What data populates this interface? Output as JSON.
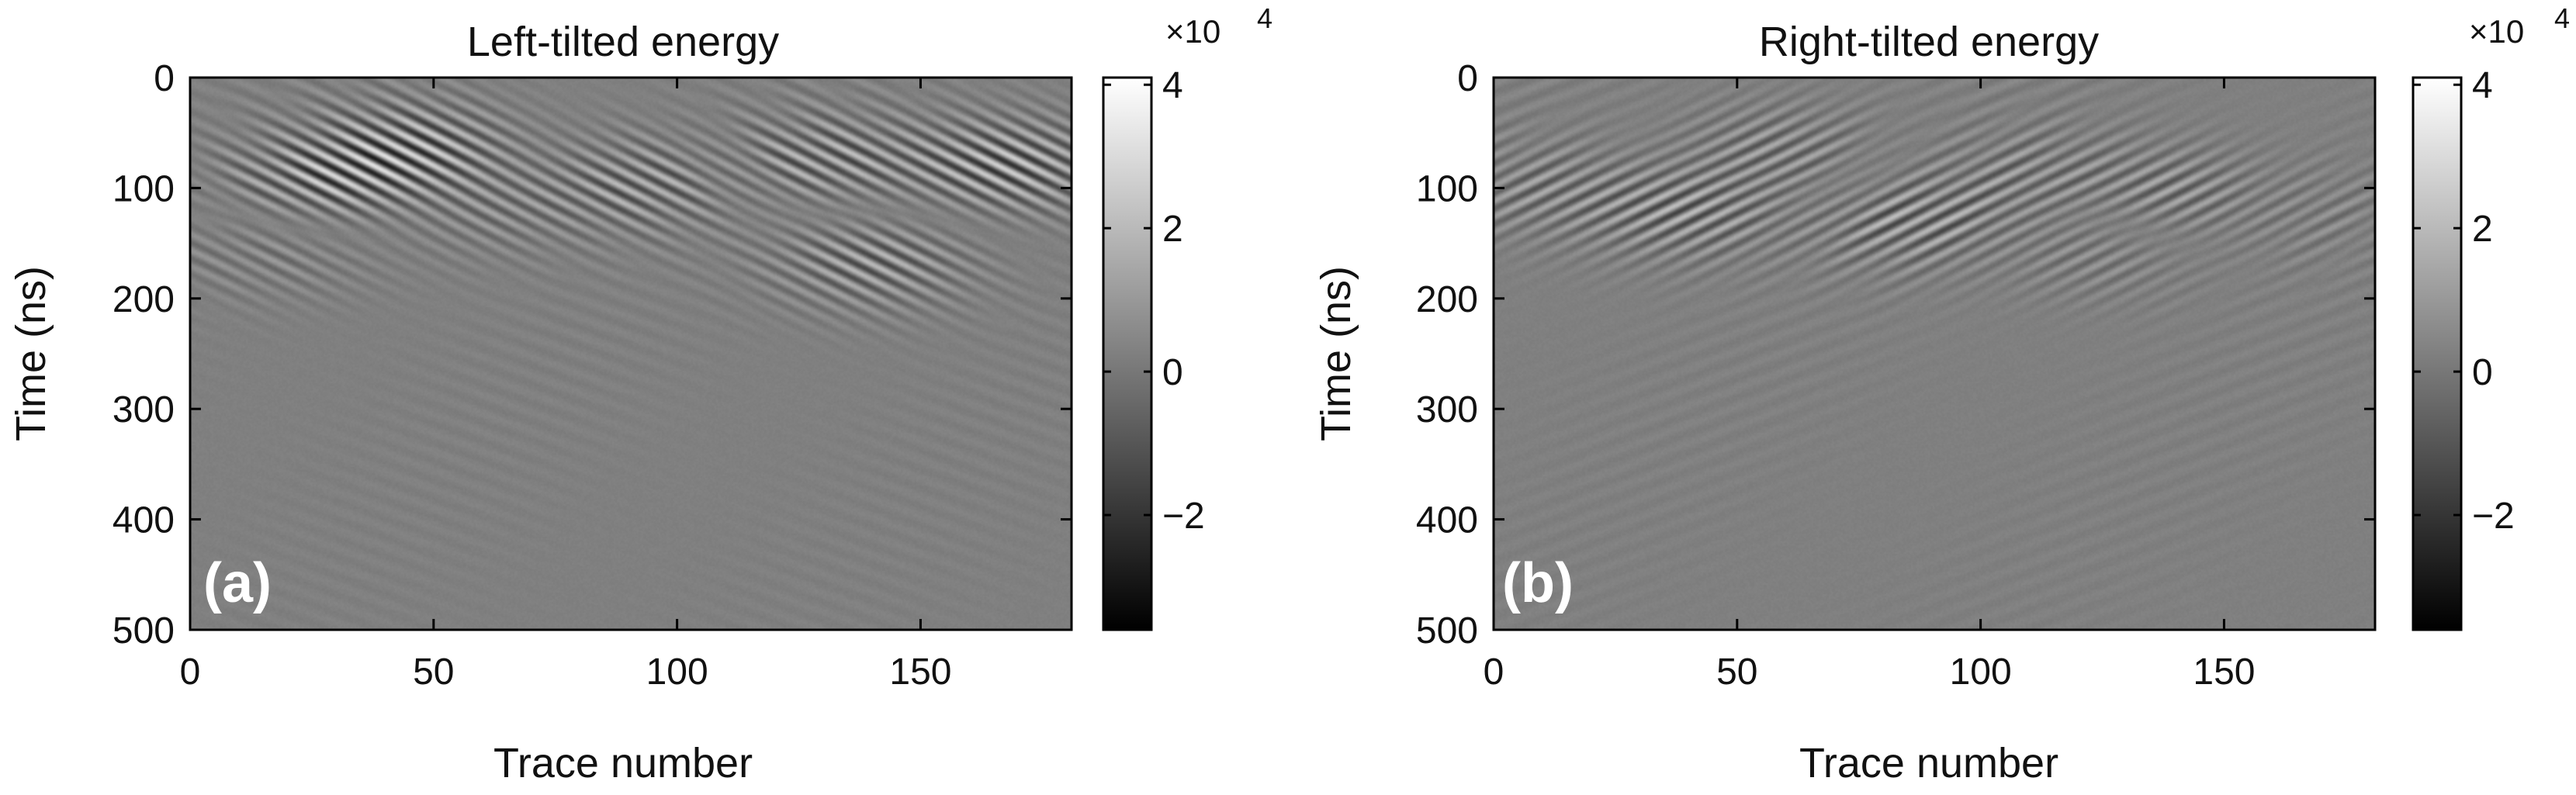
{
  "chart_data": [
    {
      "type": "heatmap",
      "panel_label": "(a)",
      "title": "Left-tilted energy",
      "xlabel": "Trace number",
      "ylabel": "Time (ns)",
      "xlim": [
        0,
        181
      ],
      "ylim": [
        0,
        500
      ],
      "y_reversed": true,
      "xticks": [
        0,
        50,
        100,
        150
      ],
      "yticks": [
        0,
        100,
        200,
        300,
        400,
        500
      ],
      "dip": "left",
      "colormap": "gray",
      "colorbar": {
        "ticks": [
          -2,
          0,
          2,
          4
        ],
        "range": [
          -3.6,
          4.1
        ],
        "exponent_label": "×10",
        "exponent": "4"
      },
      "events": [
        {
          "x": 28,
          "y": 95,
          "amp": 1.0
        },
        {
          "x": 45,
          "y": 65,
          "amp": 1.0
        },
        {
          "x": 95,
          "y": 95,
          "amp": 0.75
        },
        {
          "x": 128,
          "y": 75,
          "amp": 0.8
        },
        {
          "x": 140,
          "y": 165,
          "amp": 0.75
        },
        {
          "x": 168,
          "y": 80,
          "amp": 1.0
        },
        {
          "x": 18,
          "y": 150,
          "amp": 0.45
        },
        {
          "x": 60,
          "y": 115,
          "amp": 0.45
        }
      ]
    },
    {
      "type": "heatmap",
      "panel_label": "(b)",
      "title": "Right-tilted energy",
      "xlabel": "Trace number",
      "ylabel": "Time (ns)",
      "xlim": [
        0,
        181
      ],
      "ylim": [
        0,
        500
      ],
      "y_reversed": true,
      "xticks": [
        0,
        50,
        100,
        150
      ],
      "yticks": [
        0,
        100,
        200,
        300,
        400,
        500
      ],
      "dip": "right",
      "colormap": "gray",
      "colorbar": {
        "ticks": [
          -2,
          0,
          2,
          4
        ],
        "range": [
          -3.6,
          4.1
        ],
        "exponent_label": "×10",
        "exponent": "4"
      },
      "events": [
        {
          "x": 10,
          "y": 100,
          "amp": 0.5
        },
        {
          "x": 40,
          "y": 120,
          "amp": 0.75
        },
        {
          "x": 58,
          "y": 70,
          "amp": 0.6
        },
        {
          "x": 85,
          "y": 130,
          "amp": 0.75
        },
        {
          "x": 112,
          "y": 85,
          "amp": 0.45
        },
        {
          "x": 125,
          "y": 150,
          "amp": 0.5
        },
        {
          "x": 140,
          "y": 110,
          "amp": 0.7
        },
        {
          "x": 165,
          "y": 120,
          "amp": 0.35
        }
      ]
    }
  ]
}
